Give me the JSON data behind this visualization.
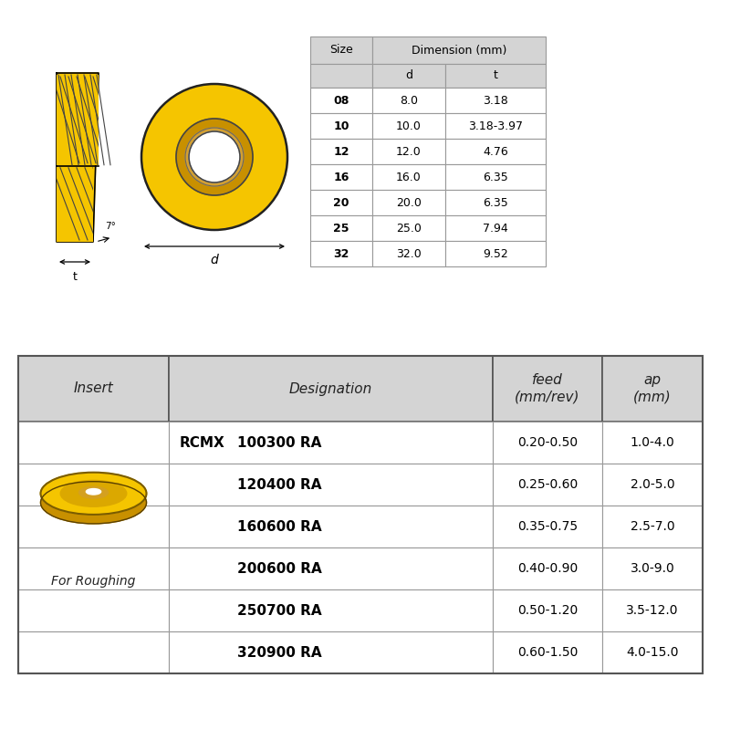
{
  "bg_color": "#ffffff",
  "dim_table": {
    "header_col": "Size",
    "header_span": "Dimension (mm)",
    "subheaders": [
      "d",
      "t"
    ],
    "rows": [
      [
        "08",
        "8.0",
        "3.18"
      ],
      [
        "10",
        "10.0",
        "3.18-3.97"
      ],
      [
        "12",
        "12.0",
        "4.76"
      ],
      [
        "16",
        "16.0",
        "6.35"
      ],
      [
        "20",
        "20.0",
        "6.35"
      ],
      [
        "25",
        "25.0",
        "7.94"
      ],
      [
        "32",
        "32.0",
        "9.52"
      ]
    ]
  },
  "insert_table": {
    "headers": [
      "Insert",
      "Designation",
      "feed\n(mm/rev)",
      "ap\n(mm)"
    ],
    "prefix": "RCMX",
    "rows": [
      [
        "100300 RA",
        "0.20-0.50",
        "1.0-4.0"
      ],
      [
        "120400 RA",
        "0.25-0.60",
        "2.0-5.0"
      ],
      [
        "160600 RA",
        "0.35-0.75",
        "2.5-7.0"
      ],
      [
        "200600 RA",
        "0.40-0.90",
        "3.0-9.0"
      ],
      [
        "250700 RA",
        "0.50-1.20",
        "3.5-12.0"
      ],
      [
        "320900 RA",
        "0.60-1.50",
        "4.0-15.0"
      ]
    ],
    "label": "For Roughing"
  },
  "yellow": "#F5C500",
  "yellow_dark": "#C89000",
  "yellow_mid": "#DBA800",
  "gray_header": "#C8C8C8",
  "gray_light": "#D4D4D4",
  "table_line": "#999999",
  "table_line_dark": "#555555"
}
